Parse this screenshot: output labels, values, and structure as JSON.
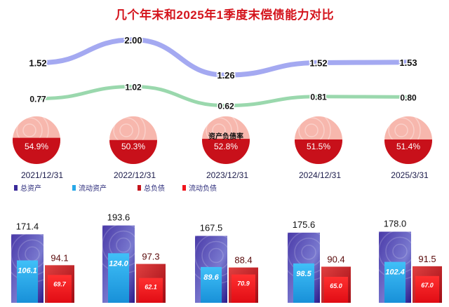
{
  "title": "几个年末和2025年1季度末偿债能力对比",
  "colors": {
    "current_ratio_line": "#9aa0f0",
    "quick_ratio_line": "#8fd4a4",
    "pie_top": "#f7b7ad",
    "pie_bottom": "#c8101a",
    "total_assets": "#3a2a9a",
    "current_assets": "#28a8e8",
    "total_liabilities": "#c4141c",
    "current_liabilities": "#f0141c",
    "title_text": "#d4141c"
  },
  "chart_data": [
    {
      "type": "line",
      "categories": [
        "2021/12/31",
        "2022/12/31",
        "2023/12/31",
        "2024/12/31",
        "2025/3/31"
      ],
      "series": [
        {
          "values": [
            1.52,
            2.0,
            1.26,
            1.52,
            1.53
          ]
        },
        {
          "values": [
            0.77,
            1.02,
            0.62,
            0.81,
            0.8
          ]
        }
      ]
    },
    {
      "type": "pie",
      "categories": [
        "2021/12/31",
        "2022/12/31",
        "2023/12/31",
        "2024/12/31",
        "2025/3/31"
      ],
      "label": "资产负债率",
      "values": [
        54.9,
        50.3,
        52.8,
        51.5,
        51.4
      ],
      "value_labels": [
        "54.9%",
        "50.3%",
        "52.8%",
        "51.5%",
        "51.4%"
      ]
    },
    {
      "type": "bar",
      "categories": [
        "2021/12/31",
        "2022/12/31",
        "2023/12/31",
        "2024/12/31",
        "2025/3/31"
      ],
      "legend": [
        "总资产",
        "流动资产",
        "总负债",
        "流动负债"
      ],
      "series": [
        {
          "name": "总资产",
          "values": [
            171.4,
            193.6,
            167.5,
            175.6,
            178.0
          ]
        },
        {
          "name": "流动资产",
          "values": [
            106.1,
            124.0,
            89.6,
            98.5,
            102.4
          ]
        },
        {
          "name": "总负债",
          "values": [
            94.1,
            97.3,
            88.4,
            90.4,
            91.5
          ]
        },
        {
          "name": "流动负债",
          "values": [
            69.7,
            62.1,
            70.9,
            65.0,
            67.0
          ]
        }
      ]
    }
  ]
}
